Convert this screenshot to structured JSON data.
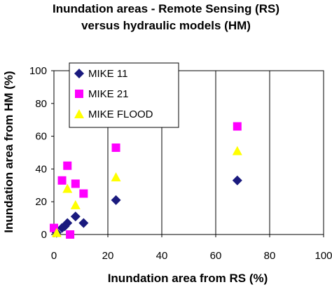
{
  "chart_data": {
    "type": "scatter",
    "title": [
      "Inundation areas - Remote Sensing (RS)",
      "versus hydraulic models (HM)"
    ],
    "xlabel": "Inundation area from RS (%)",
    "ylabel": "Inundation area from HM (%)",
    "xlim": [
      0,
      100
    ],
    "ylim": [
      0,
      100
    ],
    "xticks": [
      "0",
      "20",
      "40",
      "60",
      "80",
      "100"
    ],
    "yticks": [
      "0",
      "20",
      "40",
      "60",
      "80",
      "100"
    ],
    "grid": "vertical",
    "legend_position": "top-left",
    "series": [
      {
        "name": "MIKE 11",
        "marker": "diamond",
        "color": "#1a1a7e",
        "points": [
          [
            1,
            1
          ],
          [
            3,
            4
          ],
          [
            4,
            5
          ],
          [
            5,
            7
          ],
          [
            8,
            11
          ],
          [
            11,
            7
          ],
          [
            23,
            21
          ],
          [
            68,
            33
          ]
        ]
      },
      {
        "name": "MIKE 21",
        "marker": "square",
        "color": "#ff00ff",
        "points": [
          [
            0,
            4
          ],
          [
            3,
            33
          ],
          [
            5,
            42
          ],
          [
            6,
            0
          ],
          [
            8,
            31
          ],
          [
            11,
            25
          ],
          [
            23,
            53
          ],
          [
            68,
            66
          ]
        ]
      },
      {
        "name": "MIKE FLOOD",
        "marker": "triangle",
        "color": "#ffff00",
        "points": [
          [
            1,
            1
          ],
          [
            5,
            28
          ],
          [
            8,
            18
          ],
          [
            23,
            35
          ],
          [
            68,
            51
          ]
        ]
      }
    ]
  }
}
